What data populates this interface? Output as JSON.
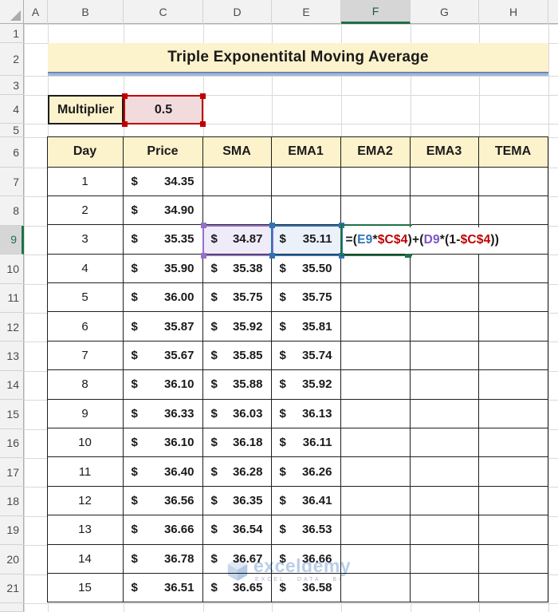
{
  "colors": {
    "accent_green": "#1E7145",
    "ref_blue": "#2E75B6",
    "ref_purple": "#9571C9",
    "ref_red": "#C00000",
    "banner_fill": "#FCF2CC",
    "header_fill": "#FCF2CC",
    "multiplier_value_fill": "#F1DBDC"
  },
  "column_headers": [
    "A",
    "B",
    "C",
    "D",
    "E",
    "F",
    "G",
    "H"
  ],
  "row_headers": [
    "1",
    "2",
    "3",
    "4",
    "5",
    "6",
    "7",
    "8",
    "9",
    "10",
    "11",
    "12",
    "13",
    "14",
    "15",
    "16",
    "17",
    "18",
    "19",
    "20",
    "21"
  ],
  "active_column": "F",
  "active_row": "9",
  "banner": {
    "title": "Triple Exponentital Moving Average"
  },
  "multiplier": {
    "label": "Multiplier",
    "value": "0.5"
  },
  "table": {
    "headers": [
      "Day",
      "Price",
      "SMA",
      "EMA1",
      "EMA2",
      "EMA3",
      "TEMA"
    ],
    "currency_symbol": "$",
    "rows": [
      {
        "day": "1",
        "price": "34.35",
        "sma": "",
        "ema1": ""
      },
      {
        "day": "2",
        "price": "34.90",
        "sma": "",
        "ema1": ""
      },
      {
        "day": "3",
        "price": "35.35",
        "sma": "34.87",
        "ema1": "35.11"
      },
      {
        "day": "4",
        "price": "35.90",
        "sma": "35.38",
        "ema1": "35.50"
      },
      {
        "day": "5",
        "price": "36.00",
        "sma": "35.75",
        "ema1": "35.75"
      },
      {
        "day": "6",
        "price": "35.87",
        "sma": "35.92",
        "ema1": "35.81"
      },
      {
        "day": "7",
        "price": "35.67",
        "sma": "35.85",
        "ema1": "35.74"
      },
      {
        "day": "8",
        "price": "36.10",
        "sma": "35.88",
        "ema1": "35.92"
      },
      {
        "day": "9",
        "price": "36.33",
        "sma": "36.03",
        "ema1": "36.13"
      },
      {
        "day": "10",
        "price": "36.10",
        "sma": "36.18",
        "ema1": "36.11"
      },
      {
        "day": "11",
        "price": "36.40",
        "sma": "36.28",
        "ema1": "36.26"
      },
      {
        "day": "12",
        "price": "36.56",
        "sma": "36.35",
        "ema1": "36.41"
      },
      {
        "day": "13",
        "price": "36.66",
        "sma": "36.54",
        "ema1": "36.53"
      },
      {
        "day": "14",
        "price": "36.78",
        "sma": "36.67",
        "ema1": "36.66"
      },
      {
        "day": "15",
        "price": "36.51",
        "sma": "36.65",
        "ema1": "36.58"
      }
    ]
  },
  "formula": {
    "cell": "F9",
    "segments": [
      {
        "text": "=(",
        "color": "#1a1a1a"
      },
      {
        "text": "E9",
        "color": "#2E75B6"
      },
      {
        "text": "*",
        "color": "#1a1a1a"
      },
      {
        "text": "$C$4",
        "color": "#C00000"
      },
      {
        "text": ")+(",
        "color": "#1a1a1a"
      },
      {
        "text": "D9",
        "color": "#7B52C4"
      },
      {
        "text": "*(1-",
        "color": "#1a1a1a"
      },
      {
        "text": "$C$4",
        "color": "#C00000"
      },
      {
        "text": "))",
        "color": "#1a1a1a"
      }
    ],
    "referenced_cells": [
      {
        "cell": "C4",
        "color": "red"
      },
      {
        "cell": "D9",
        "color": "purple"
      },
      {
        "cell": "E9",
        "color": "blue"
      }
    ]
  },
  "watermark": {
    "brand": "exceldemy",
    "tagline": "EXCEL · DATA · BI"
  }
}
